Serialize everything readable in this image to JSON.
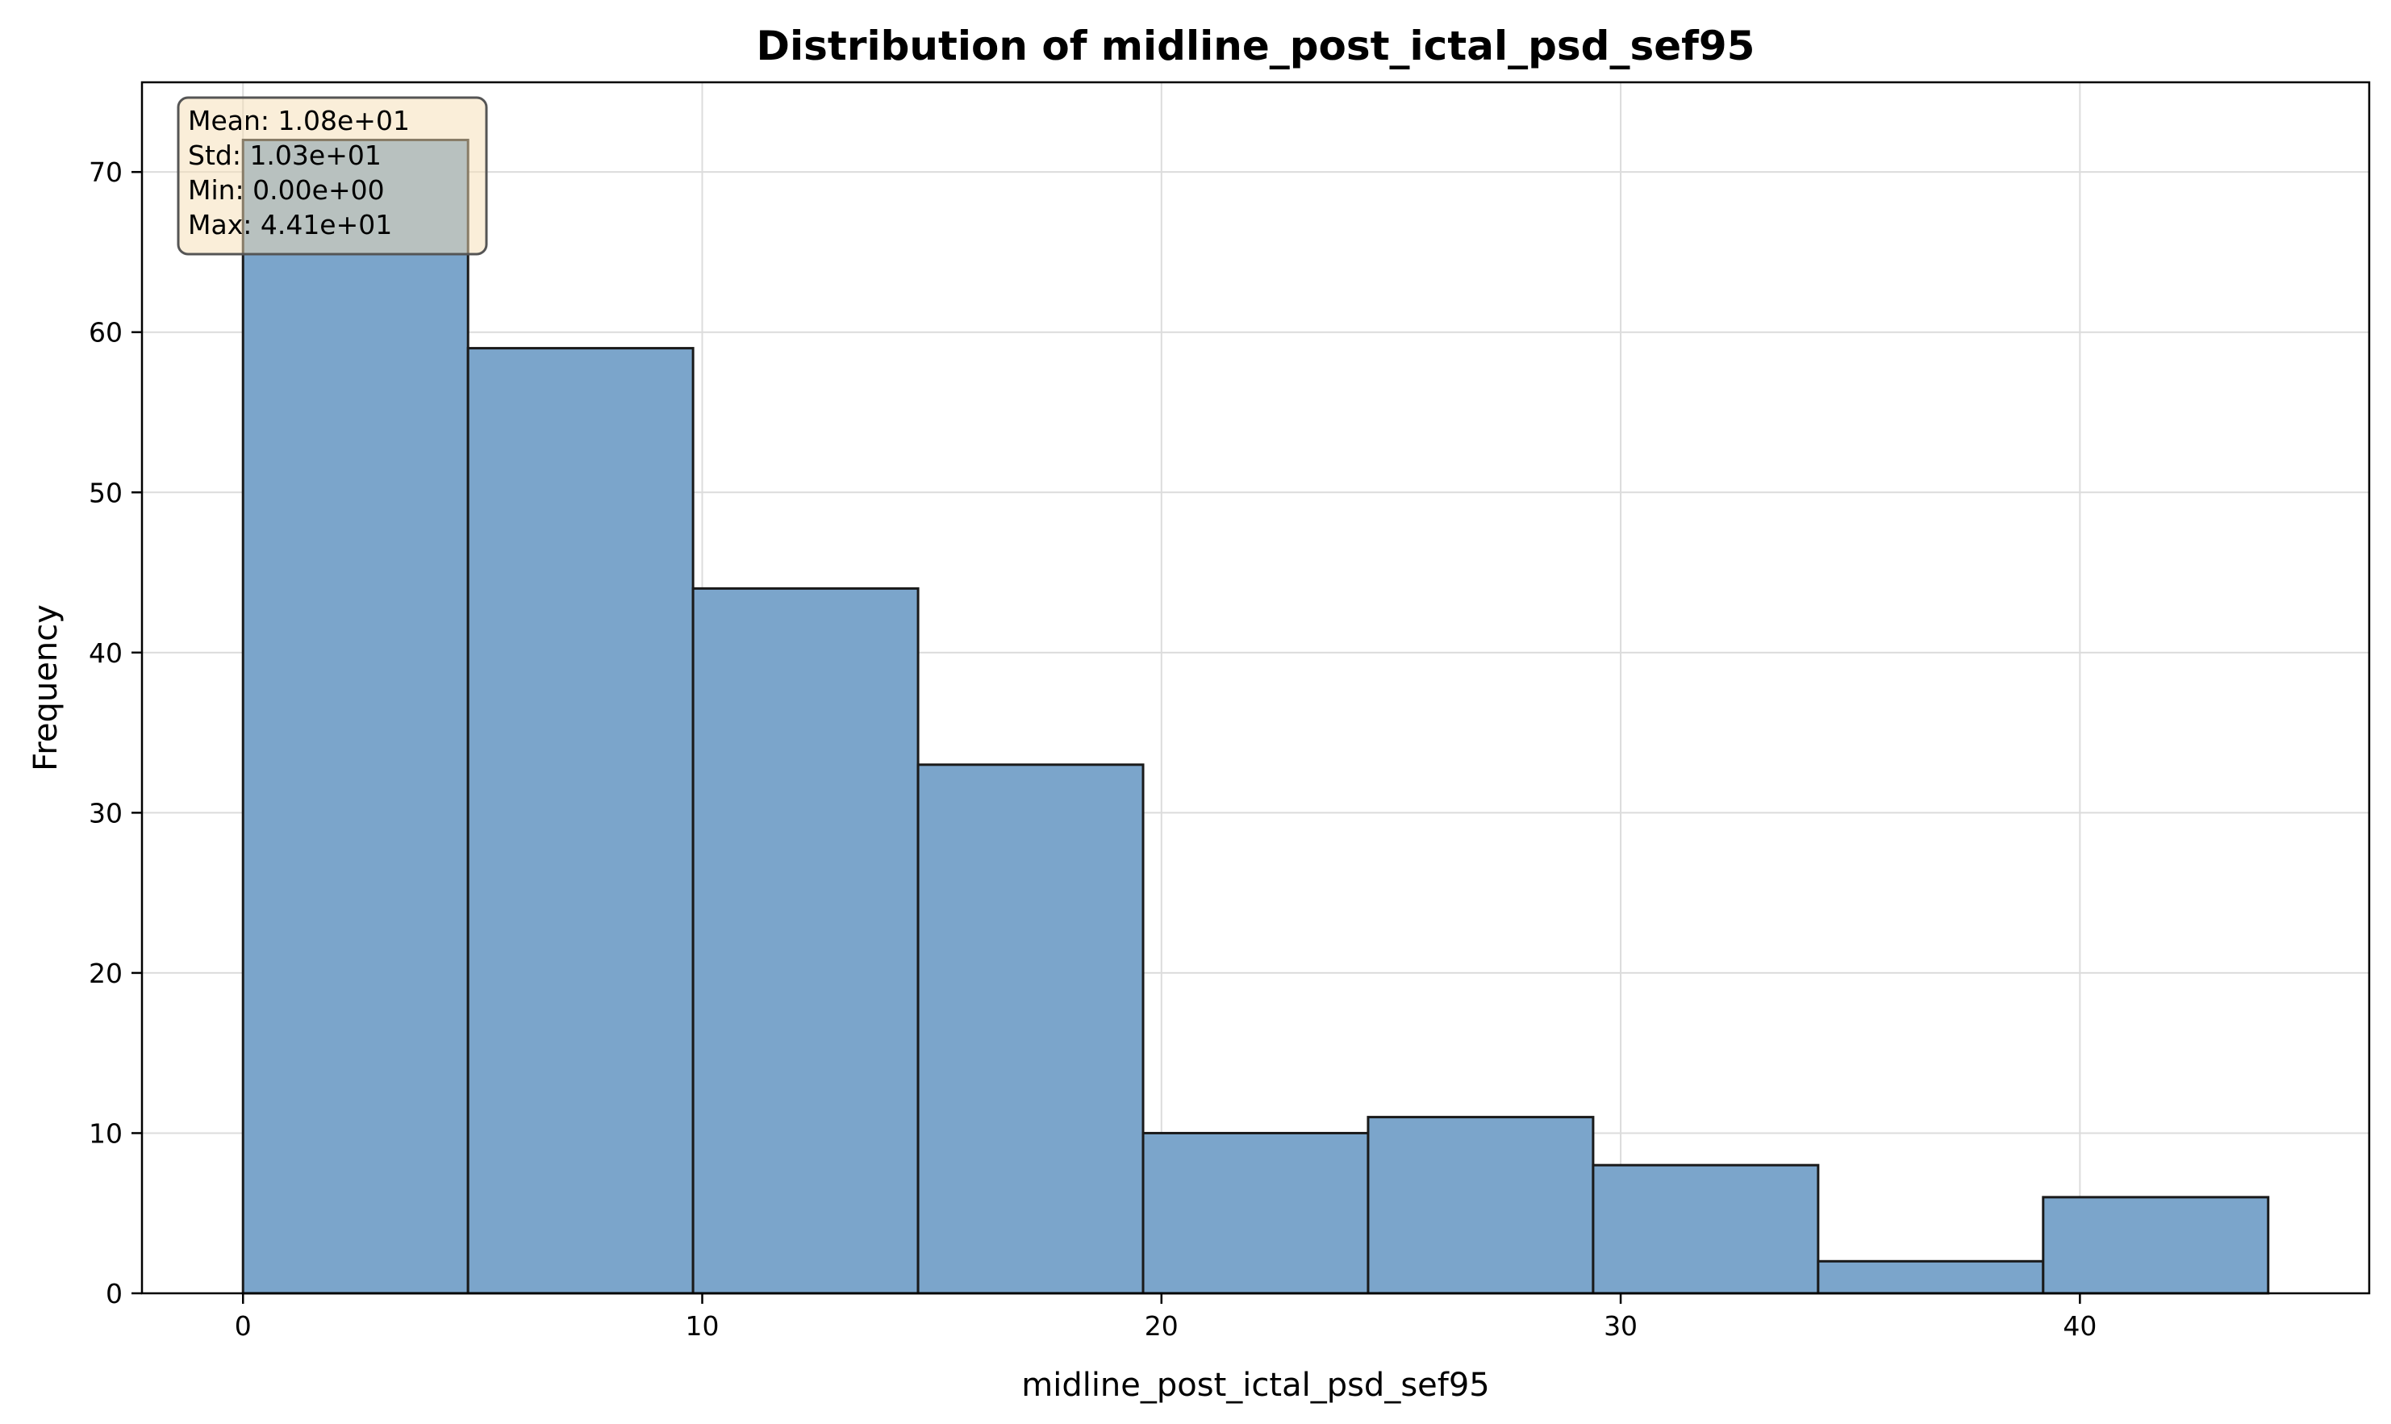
{
  "chart_data": {
    "type": "bar",
    "title": "Distribution of midline_post_ictal_psd_sef95",
    "xlabel": "midline_post_ictal_psd_sef95",
    "ylabel": "Frequency",
    "xlim": [
      -2.2,
      46.3
    ],
    "ylim": [
      0,
      75.6
    ],
    "x_ticks": [
      0,
      10,
      20,
      30,
      40
    ],
    "y_ticks": [
      0,
      10,
      20,
      30,
      40,
      50,
      60,
      70
    ],
    "grid": true,
    "bin_edges": [
      0,
      4.9,
      9.8,
      14.7,
      19.6,
      24.5,
      29.4,
      34.3,
      39.2,
      44.1
    ],
    "values": [
      72,
      59,
      44,
      33,
      10,
      11,
      8,
      2,
      6
    ],
    "bar_color": "#7ba5cb",
    "edge_color": "#1a1a1a",
    "stats_box": {
      "position": "top-left",
      "lines": [
        "Mean: 1.08e+01",
        "Std: 1.03e+01",
        "Min: 0.00e+00",
        "Max: 4.41e+01"
      ],
      "background": "#f5deb3"
    }
  }
}
